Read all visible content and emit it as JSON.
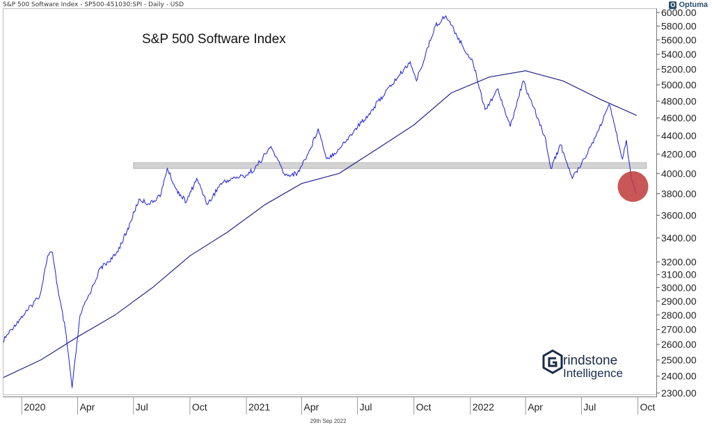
{
  "header": {
    "info": "S&P 500 Software Index  - SP500-451030:SPI - Daily - USD",
    "brand": "Optuma",
    "brand_mark": "O"
  },
  "footer": {
    "date": "29th Sep 2022"
  },
  "watermark": {
    "line1": "rindstone",
    "line2": "Intelligence"
  },
  "colors": {
    "price": "#1a1adb",
    "ma": "#23238a",
    "band": "#d3d3d3",
    "circle": "#c0393b",
    "logo": "#1a2a4a"
  },
  "chart_data": {
    "type": "line",
    "title": "S&P 500 Software Index",
    "scale": "log",
    "ylim": [
      2300,
      6000
    ],
    "xlim": [
      "2019-12-01",
      "2022-10-31"
    ],
    "grid": false,
    "y_ticks": [
      "6000.00",
      "5800.00",
      "5600.00",
      "5400.00",
      "5200.00",
      "5000.00",
      "4800.00",
      "4600.00",
      "4400.00",
      "4200.00",
      "4000.00",
      "3800.00",
      "3600.00",
      "3400.00",
      "3200.00",
      "3100.00",
      "3000.00",
      "2900.00",
      "2800.00",
      "2700.00",
      "2600.00",
      "2500.00",
      "2400.00",
      "2300.00"
    ],
    "x_ticks": [
      {
        "label": "2020",
        "date": "2020-01-01"
      },
      {
        "label": "Apr",
        "date": "2020-04-01"
      },
      {
        "label": "Jul",
        "date": "2020-07-01"
      },
      {
        "label": "Oct",
        "date": "2020-10-01"
      },
      {
        "label": "2021",
        "date": "2021-01-01"
      },
      {
        "label": "Apr",
        "date": "2021-04-01"
      },
      {
        "label": "Jul",
        "date": "2021-07-01"
      },
      {
        "label": "Oct",
        "date": "2021-10-01"
      },
      {
        "label": "2022",
        "date": "2022-01-01"
      },
      {
        "label": "Apr",
        "date": "2022-04-01"
      },
      {
        "label": "Jul",
        "date": "2022-07-01"
      },
      {
        "label": "Oct",
        "date": "2022-10-01"
      }
    ],
    "series": [
      {
        "values": [
          [
            "2019-12-01",
            2620
          ],
          [
            "2019-12-20",
            2730
          ],
          [
            "2020-01-10",
            2830
          ],
          [
            "2020-01-31",
            2950
          ],
          [
            "2020-02-12",
            3250
          ],
          [
            "2020-02-20",
            3280
          ],
          [
            "2020-03-01",
            2950
          ],
          [
            "2020-03-12",
            2700
          ],
          [
            "2020-03-23",
            2330
          ],
          [
            "2020-04-05",
            2800
          ],
          [
            "2020-04-20",
            2950
          ],
          [
            "2020-05-08",
            3150
          ],
          [
            "2020-06-01",
            3250
          ],
          [
            "2020-06-20",
            3450
          ],
          [
            "2020-07-10",
            3750
          ],
          [
            "2020-07-28",
            3700
          ],
          [
            "2020-08-15",
            3800
          ],
          [
            "2020-08-25",
            4050
          ],
          [
            "2020-09-08",
            3850
          ],
          [
            "2020-09-25",
            3720
          ],
          [
            "2020-10-12",
            3950
          ],
          [
            "2020-10-30",
            3700
          ],
          [
            "2020-11-20",
            3900
          ],
          [
            "2020-12-10",
            3950
          ],
          [
            "2020-12-31",
            3980
          ],
          [
            "2021-01-15",
            4050
          ],
          [
            "2021-02-10",
            4280
          ],
          [
            "2021-03-05",
            3980
          ],
          [
            "2021-03-25",
            4000
          ],
          [
            "2021-04-15",
            4250
          ],
          [
            "2021-04-28",
            4480
          ],
          [
            "2021-05-12",
            4150
          ],
          [
            "2021-06-01",
            4250
          ],
          [
            "2021-06-25",
            4450
          ],
          [
            "2021-07-20",
            4650
          ],
          [
            "2021-08-15",
            4900
          ],
          [
            "2021-09-05",
            5100
          ],
          [
            "2021-09-25",
            5300
          ],
          [
            "2021-10-05",
            5050
          ],
          [
            "2021-10-20",
            5400
          ],
          [
            "2021-11-05",
            5800
          ],
          [
            "2021-11-22",
            5950
          ],
          [
            "2021-12-05",
            5750
          ],
          [
            "2021-12-20",
            5500
          ],
          [
            "2022-01-05",
            5300
          ],
          [
            "2022-01-25",
            4700
          ],
          [
            "2022-02-15",
            4950
          ],
          [
            "2022-03-07",
            4500
          ],
          [
            "2022-03-28",
            5050
          ],
          [
            "2022-04-12",
            4750
          ],
          [
            "2022-05-02",
            4400
          ],
          [
            "2022-05-12",
            4050
          ],
          [
            "2022-05-28",
            4300
          ],
          [
            "2022-06-16",
            3950
          ],
          [
            "2022-07-05",
            4150
          ],
          [
            "2022-07-25",
            4400
          ],
          [
            "2022-08-15",
            4760
          ],
          [
            "2022-08-26",
            4450
          ],
          [
            "2022-09-06",
            4150
          ],
          [
            "2022-09-12",
            4350
          ],
          [
            "2022-09-20",
            3950
          ],
          [
            "2022-09-29",
            3800
          ]
        ]
      },
      {
        "values": [
          [
            "2019-12-01",
            2390
          ],
          [
            "2020-02-01",
            2500
          ],
          [
            "2020-04-01",
            2650
          ],
          [
            "2020-06-01",
            2800
          ],
          [
            "2020-08-01",
            3000
          ],
          [
            "2020-10-01",
            3250
          ],
          [
            "2020-12-01",
            3450
          ],
          [
            "2021-02-01",
            3700
          ],
          [
            "2021-04-01",
            3900
          ],
          [
            "2021-06-01",
            4000
          ],
          [
            "2021-08-01",
            4250
          ],
          [
            "2021-10-01",
            4520
          ],
          [
            "2021-12-01",
            4900
          ],
          [
            "2022-02-01",
            5100
          ],
          [
            "2022-04-01",
            5180
          ],
          [
            "2022-06-01",
            5050
          ],
          [
            "2022-08-01",
            4820
          ],
          [
            "2022-09-29",
            4630
          ]
        ]
      }
    ],
    "annotations": [
      {
        "type": "band",
        "y": [
          4050,
          4110
        ],
        "x": [
          "2020-07-01",
          "2022-10-15"
        ]
      },
      {
        "type": "circle",
        "at": [
          "2022-09-23",
          3870
        ]
      }
    ]
  }
}
